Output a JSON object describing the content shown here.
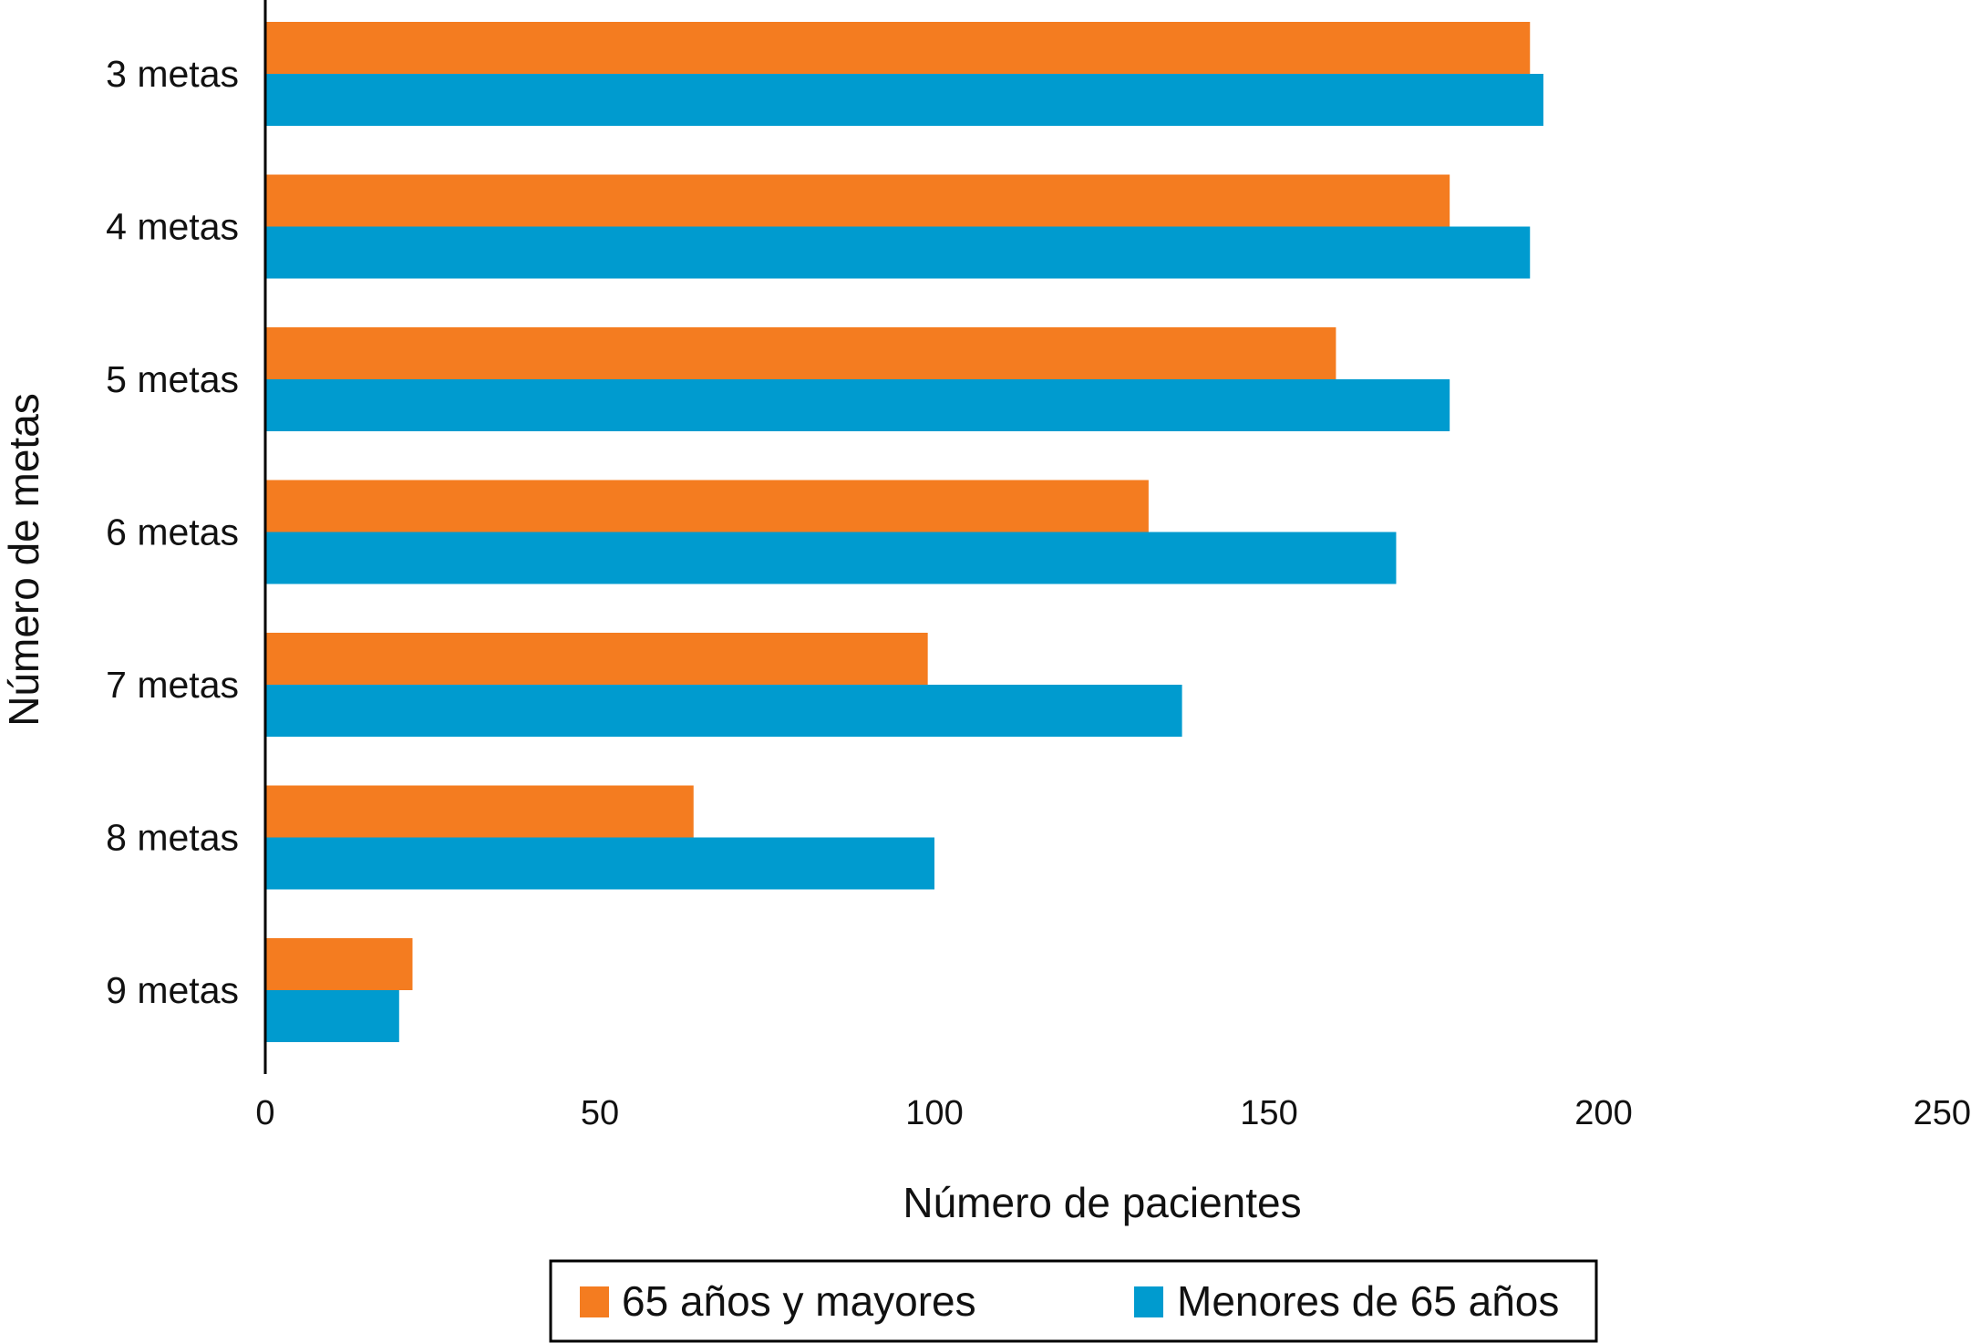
{
  "chart_data": {
    "type": "bar",
    "orientation": "horizontal",
    "xlabel": "Número de pacientes",
    "ylabel": "Número de metas",
    "xlim": [
      0,
      250
    ],
    "xticks": [
      0,
      50,
      100,
      150,
      200,
      250
    ],
    "categories": [
      "3 metas",
      "4 metas",
      "5 metas",
      "6 metas",
      "7 metas",
      "8 metas",
      "9 metas"
    ],
    "series": [
      {
        "name": "65 años y mayores",
        "color": "#F47C20",
        "values": [
          189,
          177,
          160,
          132,
          99,
          64,
          22
        ]
      },
      {
        "name": "Menores de 65 años",
        "color": "#009BCF",
        "values": [
          191,
          189,
          177,
          169,
          137,
          100,
          20
        ]
      }
    ],
    "grid": false,
    "legend_position": "bottom"
  }
}
